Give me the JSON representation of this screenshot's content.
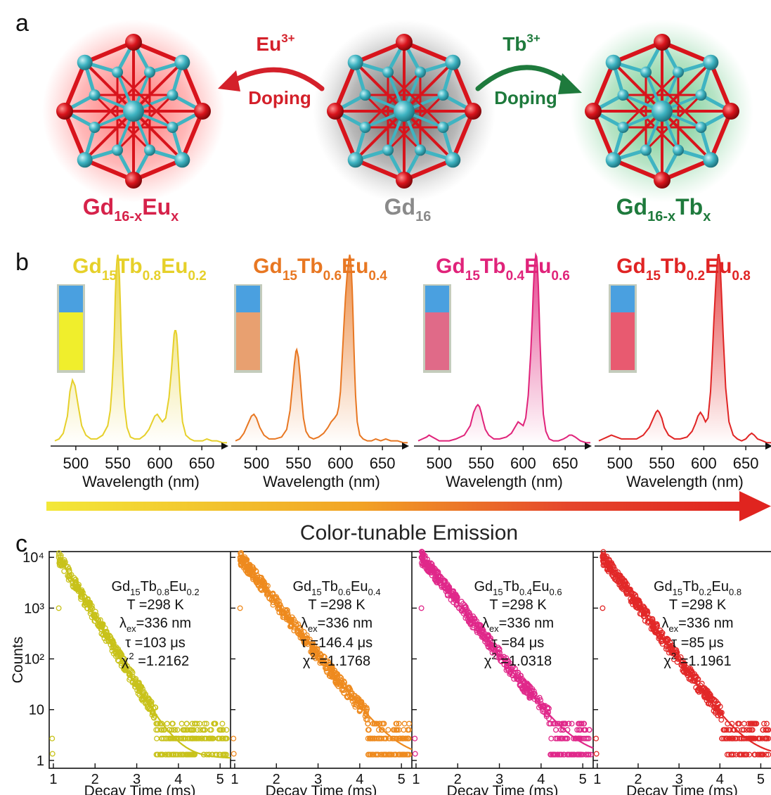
{
  "panel_a": {
    "letter": "a",
    "left": {
      "label": "Gd",
      "sub": "16-x",
      "label2": "Eu",
      "sub2": "x",
      "color": "#d6224a"
    },
    "center": {
      "label": "Gd",
      "sub": "16",
      "color": "#8a8a8a"
    },
    "right": {
      "label": "Gd",
      "sub": "16-x",
      "label2": "Tb",
      "sub2": "x",
      "color": "#1e7a3c"
    },
    "arrow_left": {
      "ion": "Eu",
      "charge": "3+",
      "word": "Doping",
      "color": "#d4202a"
    },
    "arrow_right": {
      "ion": "Tb",
      "charge": "3+",
      "word": "Doping",
      "color": "#1e7a3c"
    },
    "atom_colors": {
      "gd": "#3fb4c2",
      "o": "#d8141c"
    }
  },
  "panel_b": {
    "letter": "b",
    "gradient_title": "Color-tunable Emission",
    "gradient_colors": [
      "#f3e838",
      "#f2a325",
      "#e5462c",
      "#e0241f"
    ]
  },
  "panel_c": {
    "letter": "c"
  },
  "chart_data": [
    {
      "type": "line",
      "panel": "b",
      "title": "Gd15Tb0.8Eu0.2",
      "title_parts": {
        "a": "Gd",
        "as": "15",
        "b": "Tb",
        "bs": "0.8",
        "c": "Eu",
        "cs": "0.2"
      },
      "color": "#e6d02a",
      "xlabel": "Wavelength (nm)",
      "ylabel": "",
      "xlim": [
        475,
        680
      ],
      "xticks": [
        500,
        550,
        600,
        650
      ],
      "vial_color": "#f0ee2c",
      "x": [
        475,
        480,
        485,
        490,
        493,
        496,
        499,
        503,
        507,
        512,
        518,
        525,
        532,
        538,
        541,
        543,
        545,
        546,
        547,
        548,
        549,
        550,
        551,
        552,
        553,
        554,
        556,
        558,
        561,
        565,
        570,
        576,
        582,
        587,
        591,
        594,
        597,
        600,
        603,
        607,
        611,
        614,
        616,
        617,
        618,
        619,
        620,
        621,
        622,
        624,
        627,
        631,
        636,
        641,
        646,
        651,
        656,
        662,
        668,
        675,
        680
      ],
      "y": [
        0.02,
        0.03,
        0.06,
        0.15,
        0.28,
        0.34,
        0.31,
        0.2,
        0.1,
        0.05,
        0.03,
        0.03,
        0.05,
        0.1,
        0.18,
        0.3,
        0.48,
        0.62,
        0.78,
        0.9,
        0.97,
        1.0,
        0.97,
        0.88,
        0.74,
        0.58,
        0.36,
        0.2,
        0.09,
        0.04,
        0.03,
        0.03,
        0.05,
        0.08,
        0.12,
        0.15,
        0.16,
        0.14,
        0.12,
        0.14,
        0.25,
        0.4,
        0.52,
        0.58,
        0.6,
        0.6,
        0.58,
        0.52,
        0.44,
        0.28,
        0.12,
        0.05,
        0.03,
        0.02,
        0.02,
        0.02,
        0.03,
        0.02,
        0.02,
        0.01,
        0.01
      ]
    },
    {
      "type": "line",
      "panel": "b",
      "title": "Gd15Tb0.6Eu0.4",
      "title_parts": {
        "a": "Gd",
        "as": "15",
        "b": "Tb",
        "bs": "0.6",
        "c": "Eu",
        "cs": "0.4"
      },
      "color": "#e87722",
      "xlabel": "Wavelength (nm)",
      "ylabel": "",
      "xlim": [
        475,
        680
      ],
      "xticks": [
        500,
        550,
        600,
        650
      ],
      "vial_color": "#e8a070",
      "x": [
        475,
        480,
        485,
        490,
        494,
        497,
        500,
        504,
        509,
        515,
        522,
        530,
        536,
        540,
        543,
        545,
        547,
        548,
        550,
        552,
        554,
        556,
        559,
        563,
        568,
        574,
        580,
        585,
        589,
        593,
        596,
        598,
        600,
        602,
        604,
        606,
        608,
        610,
        611,
        612,
        613,
        614,
        615,
        616,
        617,
        618,
        620,
        623,
        627,
        632,
        637,
        642,
        648,
        654,
        660,
        668,
        675,
        680
      ],
      "y": [
        0.02,
        0.03,
        0.06,
        0.11,
        0.15,
        0.16,
        0.14,
        0.09,
        0.05,
        0.03,
        0.03,
        0.04,
        0.08,
        0.18,
        0.32,
        0.42,
        0.49,
        0.5,
        0.46,
        0.36,
        0.24,
        0.14,
        0.07,
        0.04,
        0.03,
        0.04,
        0.06,
        0.09,
        0.12,
        0.14,
        0.16,
        0.2,
        0.28,
        0.45,
        0.62,
        0.78,
        0.9,
        0.97,
        1.0,
        0.98,
        0.92,
        0.82,
        0.68,
        0.52,
        0.38,
        0.26,
        0.12,
        0.05,
        0.03,
        0.02,
        0.02,
        0.03,
        0.02,
        0.03,
        0.02,
        0.02,
        0.01,
        0.01
      ]
    },
    {
      "type": "line",
      "panel": "b",
      "title": "Gd15Tb0.4Eu0.6",
      "title_parts": {
        "a": "Gd",
        "as": "15",
        "b": "Tb",
        "bs": "0.4",
        "c": "Eu",
        "cs": "0.6"
      },
      "color": "#e0237a",
      "xlabel": "Wavelength (nm)",
      "ylabel": "",
      "xlim": [
        475,
        680
      ],
      "xticks": [
        500,
        550,
        600,
        650
      ],
      "vial_color": "#e06a88",
      "x": [
        475,
        480,
        485,
        488,
        492,
        496,
        500,
        505,
        512,
        520,
        530,
        537,
        541,
        544,
        546,
        548,
        550,
        552,
        555,
        559,
        565,
        572,
        580,
        586,
        590,
        594,
        597,
        600,
        603,
        606,
        609,
        611,
        612,
        613,
        614,
        615,
        616,
        617,
        618,
        619,
        620,
        622,
        624,
        627,
        631,
        636,
        642,
        648,
        652,
        655,
        658,
        662,
        668,
        675,
        680
      ],
      "y": [
        0.02,
        0.03,
        0.04,
        0.05,
        0.04,
        0.03,
        0.02,
        0.02,
        0.02,
        0.03,
        0.05,
        0.1,
        0.17,
        0.2,
        0.21,
        0.2,
        0.17,
        0.13,
        0.08,
        0.05,
        0.03,
        0.03,
        0.04,
        0.06,
        0.09,
        0.12,
        0.11,
        0.1,
        0.14,
        0.26,
        0.48,
        0.68,
        0.8,
        0.9,
        0.96,
        1.0,
        0.99,
        0.94,
        0.84,
        0.7,
        0.55,
        0.32,
        0.16,
        0.07,
        0.03,
        0.02,
        0.02,
        0.03,
        0.04,
        0.05,
        0.05,
        0.04,
        0.02,
        0.01,
        0.01
      ]
    },
    {
      "type": "line",
      "panel": "b",
      "title": "Gd15Tb0.2Eu0.8",
      "title_parts": {
        "a": "Gd",
        "as": "15",
        "b": "Tb",
        "bs": "0.2",
        "c": "Eu",
        "cs": "0.8"
      },
      "color": "#e02424",
      "xlabel": "Wavelength (nm)",
      "ylabel": "",
      "xlim": [
        475,
        680
      ],
      "xticks": [
        500,
        550,
        600,
        650
      ],
      "vial_color": "#e85a70",
      "x": [
        475,
        480,
        485,
        490,
        496,
        502,
        510,
        520,
        528,
        535,
        540,
        543,
        545,
        547,
        550,
        553,
        558,
        565,
        572,
        580,
        586,
        590,
        593,
        596,
        599,
        602,
        605,
        608,
        610,
        612,
        614,
        615,
        616,
        617,
        618,
        619,
        620,
        621,
        623,
        626,
        630,
        635,
        640,
        645,
        650,
        654,
        657,
        660,
        664,
        670,
        675,
        680
      ],
      "y": [
        0.02,
        0.03,
        0.04,
        0.05,
        0.04,
        0.03,
        0.03,
        0.03,
        0.05,
        0.09,
        0.14,
        0.17,
        0.18,
        0.17,
        0.14,
        0.09,
        0.05,
        0.03,
        0.03,
        0.04,
        0.07,
        0.11,
        0.15,
        0.17,
        0.15,
        0.12,
        0.14,
        0.28,
        0.45,
        0.65,
        0.82,
        0.9,
        0.96,
        1.0,
        1.0,
        0.97,
        0.9,
        0.8,
        0.58,
        0.3,
        0.12,
        0.05,
        0.03,
        0.02,
        0.03,
        0.05,
        0.06,
        0.05,
        0.03,
        0.02,
        0.01,
        0.01
      ]
    },
    {
      "type": "scatter",
      "panel": "c",
      "color": "#c8c21a",
      "xlabel": "Decay Time (ms)",
      "ylabel": "Counts",
      "ylog": true,
      "xlim": [
        0.9,
        5.25
      ],
      "ylim": [
        0.7,
        13000
      ],
      "xticks": [
        1,
        2,
        3,
        4,
        5
      ],
      "yticks": [
        1,
        10,
        100,
        1000,
        10000
      ],
      "ytick_labels": [
        "1",
        "10",
        "10²",
        "10³",
        "10⁴"
      ],
      "fit": {
        "A": 10000,
        "tau_ms": 0.32,
        "x0": 1.13,
        "baseline": 1.1
      },
      "annotation": [
        {
          "t": "Gd",
          "s": "15",
          "t2": "Tb",
          "s2": "0.8",
          "t3": "Eu",
          "s3": "0.2"
        },
        {
          "line": "T =298 K"
        },
        {
          "pre": "λ",
          "sub": "ex",
          "post": "=336 nm"
        },
        {
          "line": "τ =103 μs"
        },
        {
          "pre": "χ",
          "sup": "2",
          "post": " =1.2162"
        }
      ]
    },
    {
      "type": "scatter",
      "panel": "c",
      "color": "#ee8a1e",
      "xlabel": "Decay Time (ms)",
      "ylabel": "",
      "ylog": true,
      "xlim": [
        0.9,
        5.25
      ],
      "ylim": [
        0.7,
        13000
      ],
      "xticks": [
        1,
        2,
        3,
        4,
        5
      ],
      "yticks": [
        1,
        10,
        100,
        1000,
        10000
      ],
      "fit": {
        "A": 10000,
        "tau_ms": 0.42,
        "x0": 1.13,
        "baseline": 1.1
      },
      "annotation": [
        {
          "t": "Gd",
          "s": "15",
          "t2": "Tb",
          "s2": "0.6",
          "t3": "Eu",
          "s3": "0.4"
        },
        {
          "line": "T =298 K"
        },
        {
          "pre": "λ",
          "sub": "ex",
          "post": "=336 nm"
        },
        {
          "line": "τ =146.4 μs"
        },
        {
          "pre": "χ",
          "sup": "2",
          "post": " =1.1768"
        }
      ]
    },
    {
      "type": "scatter",
      "panel": "c",
      "color": "#e0288a",
      "xlabel": "Decay Time (ms)",
      "ylabel": "",
      "ylog": true,
      "xlim": [
        0.9,
        5.25
      ],
      "ylim": [
        0.7,
        13000
      ],
      "xticks": [
        1,
        2,
        3,
        4,
        5
      ],
      "yticks": [
        1,
        10,
        100,
        1000,
        10000
      ],
      "fit": {
        "A": 10000,
        "tau_ms": 0.42,
        "x0": 1.13,
        "baseline": 1.2
      },
      "annotation": [
        {
          "t": "Gd",
          "s": "15",
          "t2": "Tb",
          "s2": "0.4",
          "t3": "Eu",
          "s3": "0.6"
        },
        {
          "line": "T =298 K"
        },
        {
          "pre": "λ",
          "sub": "ex",
          "post": "=336 nm"
        },
        {
          "line": "τ =84 μs"
        },
        {
          "pre": "χ",
          "sup": "2",
          "post": " =1.0318"
        }
      ]
    },
    {
      "type": "scatter",
      "panel": "c",
      "color": "#e22828",
      "xlabel": "Decay Time (ms)",
      "ylabel": "",
      "ylog": true,
      "xlim": [
        0.9,
        5.25
      ],
      "ylim": [
        0.7,
        13000
      ],
      "xticks": [
        1,
        2,
        3,
        4,
        5
      ],
      "yticks": [
        1,
        10,
        100,
        1000,
        10000
      ],
      "fit": {
        "A": 10000,
        "tau_ms": 0.4,
        "x0": 1.13,
        "baseline": 1.2
      },
      "annotation": [
        {
          "t": "Gd",
          "s": "15",
          "t2": "Tb",
          "s2": "0.2",
          "t3": "Eu",
          "s3": "0.8"
        },
        {
          "line": "T =298 K"
        },
        {
          "pre": "λ",
          "sub": "ex",
          "post": "=336 nm"
        },
        {
          "line": "τ =85 μs"
        },
        {
          "pre": "χ",
          "sup": "2",
          "post": " =1.1961"
        }
      ]
    }
  ]
}
